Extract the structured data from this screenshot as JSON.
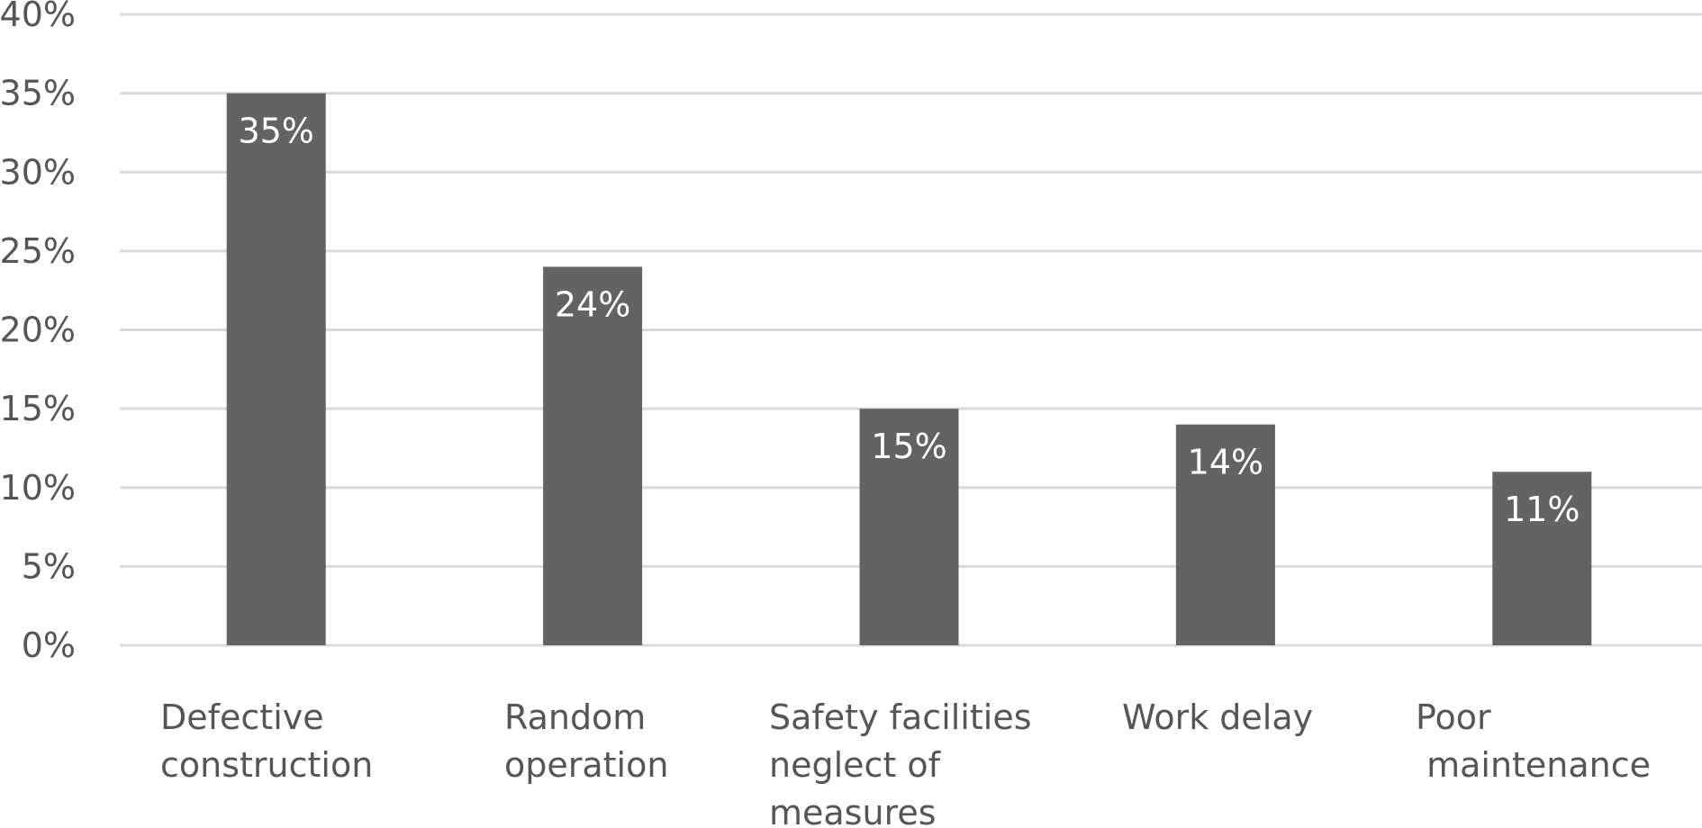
{
  "chart_data": {
    "type": "bar",
    "title": "",
    "xlabel": "",
    "ylabel": "",
    "categories": [
      [
        "Defective",
        "construction"
      ],
      [
        "Random",
        "operation"
      ],
      [
        "Safety facilities",
        "neglect of",
        "measures"
      ],
      [
        "Work delay"
      ],
      [
        "Poor",
        " maintenance"
      ]
    ],
    "values": [
      35,
      24,
      15,
      14,
      11
    ],
    "data_labels": [
      "35%",
      "24%",
      "15%",
      "14%",
      "11%"
    ],
    "ylim": [
      0,
      40
    ],
    "yticks": [
      0,
      5,
      10,
      15,
      20,
      25,
      30,
      35,
      40
    ],
    "ytick_labels": [
      "0%",
      "5%",
      "10%",
      "15%",
      "20%",
      "25%",
      "30%",
      "35%",
      "40%"
    ],
    "grid": true,
    "legend": "none",
    "bar_color": "#636363",
    "grid_color": "#d9d9d9",
    "text_color": "#555555",
    "data_label_color": "#ffffff"
  }
}
